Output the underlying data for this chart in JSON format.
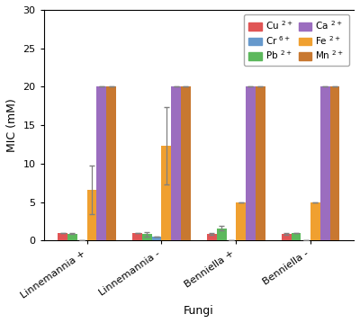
{
  "categories": [
    "Linnemannia +",
    "Linnemannia -",
    "Benniella +",
    "Benniella -"
  ],
  "metals": [
    "Cu 2+",
    "Pb 2+",
    "Cr 6+",
    "Fe 2+",
    "Ca 2+",
    "Mn 2+"
  ],
  "colors": [
    "#e05555",
    "#5cb85c",
    "#6699cc",
    "#f0a030",
    "#9b6dbf",
    "#c87830"
  ],
  "values": [
    [
      1.0,
      0.9,
      0.05,
      6.6,
      20.0,
      20.0
    ],
    [
      1.0,
      0.8,
      0.45,
      12.3,
      20.0,
      20.0
    ],
    [
      0.9,
      1.6,
      0.05,
      5.0,
      20.0,
      20.0
    ],
    [
      0.85,
      1.0,
      0.05,
      5.0,
      20.0,
      20.0
    ]
  ],
  "errors": [
    [
      0.0,
      0.1,
      0.0,
      3.2,
      0.0,
      0.0
    ],
    [
      0.0,
      0.25,
      0.0,
      5.0,
      0.0,
      0.0
    ],
    [
      0.12,
      0.3,
      0.0,
      0.0,
      0.0,
      0.0
    ],
    [
      0.08,
      0.0,
      0.0,
      0.0,
      0.0,
      0.0
    ]
  ],
  "ylabel": "MIC (mM)",
  "xlabel": "Fungi",
  "ylim": [
    0,
    30
  ],
  "yticks": [
    0,
    5,
    10,
    15,
    20,
    25,
    30
  ],
  "background_color": "#ffffff",
  "legend_labels_left": [
    "Cu $^{2+}$",
    "Pb $^{2+}$",
    "Fe $^{2+}$"
  ],
  "legend_labels_right": [
    "Cr $^{6+}$",
    "Ca $^{2+}$",
    "Mn $^{2+}$"
  ],
  "legend_colors_left": [
    "#e05555",
    "#5cb85c",
    "#f0a030"
  ],
  "legend_colors_right": [
    "#6699cc",
    "#9b6dbf",
    "#c87830"
  ]
}
